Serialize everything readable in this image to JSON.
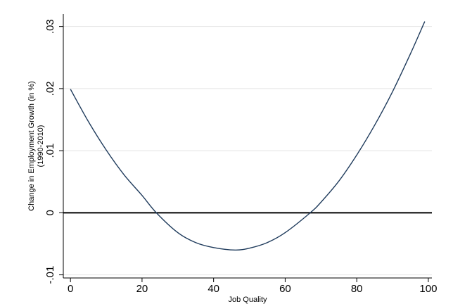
{
  "chart_data": {
    "type": "line",
    "title": "",
    "xlabel": "Job Quality",
    "ylabel": "Change in Employment Growth (in %)",
    "ylabel_line2": "(1990-2010)",
    "xlim": [
      -2,
      101
    ],
    "ylim": [
      -0.0105,
      0.032
    ],
    "xticks": [
      0,
      20,
      40,
      60,
      80,
      100
    ],
    "xtick_labels": [
      "0",
      "20",
      "40",
      "60",
      "80",
      "100"
    ],
    "yticks": [
      -0.01,
      0,
      0.01,
      0.02,
      0.03
    ],
    "ytick_labels": [
      "-.01",
      "0",
      ".01",
      ".02",
      ".03"
    ],
    "grid": true,
    "reference_line_y": 0,
    "series": [
      {
        "color": "#1f3b5c",
        "x": [
          0,
          5,
          10,
          15,
          20,
          24,
          30,
          35,
          40,
          46,
          50,
          55,
          60,
          67,
          70,
          75,
          80,
          85,
          90,
          95,
          99
        ],
        "y": [
          0.0199,
          0.0147,
          0.0101,
          0.0061,
          0.0028,
          0.0,
          -0.0032,
          -0.0048,
          -0.0056,
          -0.006,
          -0.0057,
          -0.0048,
          -0.0032,
          0.0,
          0.0017,
          0.0051,
          0.0093,
          0.0141,
          0.0195,
          0.0256,
          0.0308
        ]
      }
    ]
  }
}
